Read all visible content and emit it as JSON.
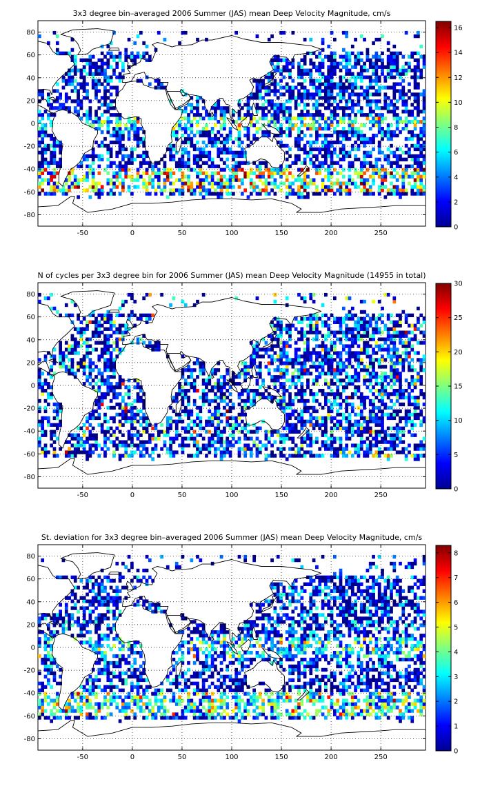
{
  "colors": {
    "colormap": "jet",
    "background": "#ffffff",
    "coastline": "#000000"
  },
  "chart_data": [
    {
      "type": "heatmap",
      "title": "3x3 degree bin–averaged 2006 Summer (JAS) mean Deep Velocity Magnitude, cm/s",
      "x_range": [
        -95,
        295
      ],
      "y_range": [
        -90,
        90
      ],
      "x_ticks": [
        "-50",
        "0",
        "50",
        "100",
        "150",
        "200",
        "250"
      ],
      "y_ticks": [
        "80",
        "60",
        "40",
        "20",
        "0",
        "-20",
        "-40",
        "-60",
        "-80"
      ],
      "bin_deg": 3,
      "grid": true,
      "colorbar": {
        "range": [
          0,
          16.5
        ],
        "ticks": [
          "0",
          "2",
          "4",
          "6",
          "8",
          "10",
          "12",
          "14",
          "16"
        ],
        "placement": "right"
      }
    },
    {
      "type": "heatmap",
      "title": "N of cycles per 3x3 degree bin for 2006 Summer (JAS) mean Deep Velocity Magnitude (14955 in total)",
      "x_range": [
        -95,
        295
      ],
      "y_range": [
        -90,
        90
      ],
      "x_ticks": [
        "-50",
        "0",
        "50",
        "100",
        "150",
        "200",
        "250"
      ],
      "y_ticks": [
        "80",
        "60",
        "40",
        "20",
        "0",
        "-20",
        "-40",
        "-60",
        "-80"
      ],
      "bin_deg": 3,
      "grid": true,
      "colorbar": {
        "range": [
          0,
          30
        ],
        "ticks": [
          "0",
          "5",
          "10",
          "15",
          "20",
          "25",
          "30"
        ],
        "placement": "right"
      }
    },
    {
      "type": "heatmap",
      "title": "St. deviation for 3x3 degree bin–averaged 2006 Summer (JAS) mean Deep Velocity Magnitude, cm/s",
      "x_range": [
        -95,
        295
      ],
      "y_range": [
        -90,
        90
      ],
      "x_ticks": [
        "-50",
        "0",
        "50",
        "100",
        "150",
        "200",
        "250"
      ],
      "y_ticks": [
        "80",
        "60",
        "40",
        "20",
        "0",
        "-20",
        "-40",
        "-60",
        "-80"
      ],
      "bin_deg": 3,
      "grid": true,
      "colorbar": {
        "range": [
          0,
          8.3
        ],
        "ticks": [
          "0",
          "1",
          "2",
          "3",
          "4",
          "5",
          "6",
          "7",
          "8"
        ],
        "placement": "right"
      }
    }
  ]
}
